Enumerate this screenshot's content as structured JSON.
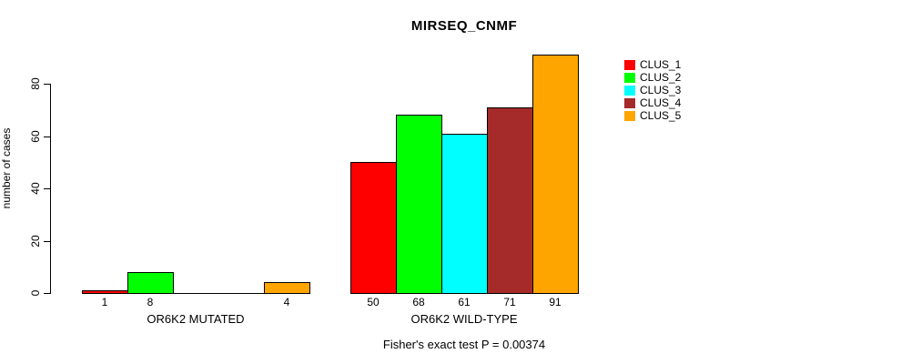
{
  "chart_data": {
    "type": "bar",
    "title": "MIRSEQ_CNMF",
    "ylabel": "number of cases",
    "xlabel": "",
    "y_ticks": [
      0,
      20,
      40,
      60,
      80
    ],
    "ylim": [
      0,
      80
    ],
    "grid": false,
    "legend_position": "right",
    "bar_border_color": "#000000",
    "series": [
      {
        "name": "CLUS_1",
        "color": "#FF0000"
      },
      {
        "name": "CLUS_2",
        "color": "#00FF00"
      },
      {
        "name": "CLUS_3",
        "color": "#00FFFF"
      },
      {
        "name": "CLUS_4",
        "color": "#A52A2A"
      },
      {
        "name": "CLUS_5",
        "color": "#FFA500"
      }
    ],
    "groups": [
      {
        "label": "OR6K2 MUTATED",
        "values": [
          1,
          8,
          0,
          0,
          4
        ],
        "value_labels": [
          "1",
          "8",
          "",
          "",
          "4"
        ]
      },
      {
        "label": "OR6K2 WILD-TYPE",
        "values": [
          50,
          68,
          61,
          71,
          91
        ],
        "value_labels": [
          "50",
          "68",
          "61",
          "71",
          "91"
        ]
      }
    ],
    "annotation": "Fisher's exact test P = 0.00374"
  }
}
